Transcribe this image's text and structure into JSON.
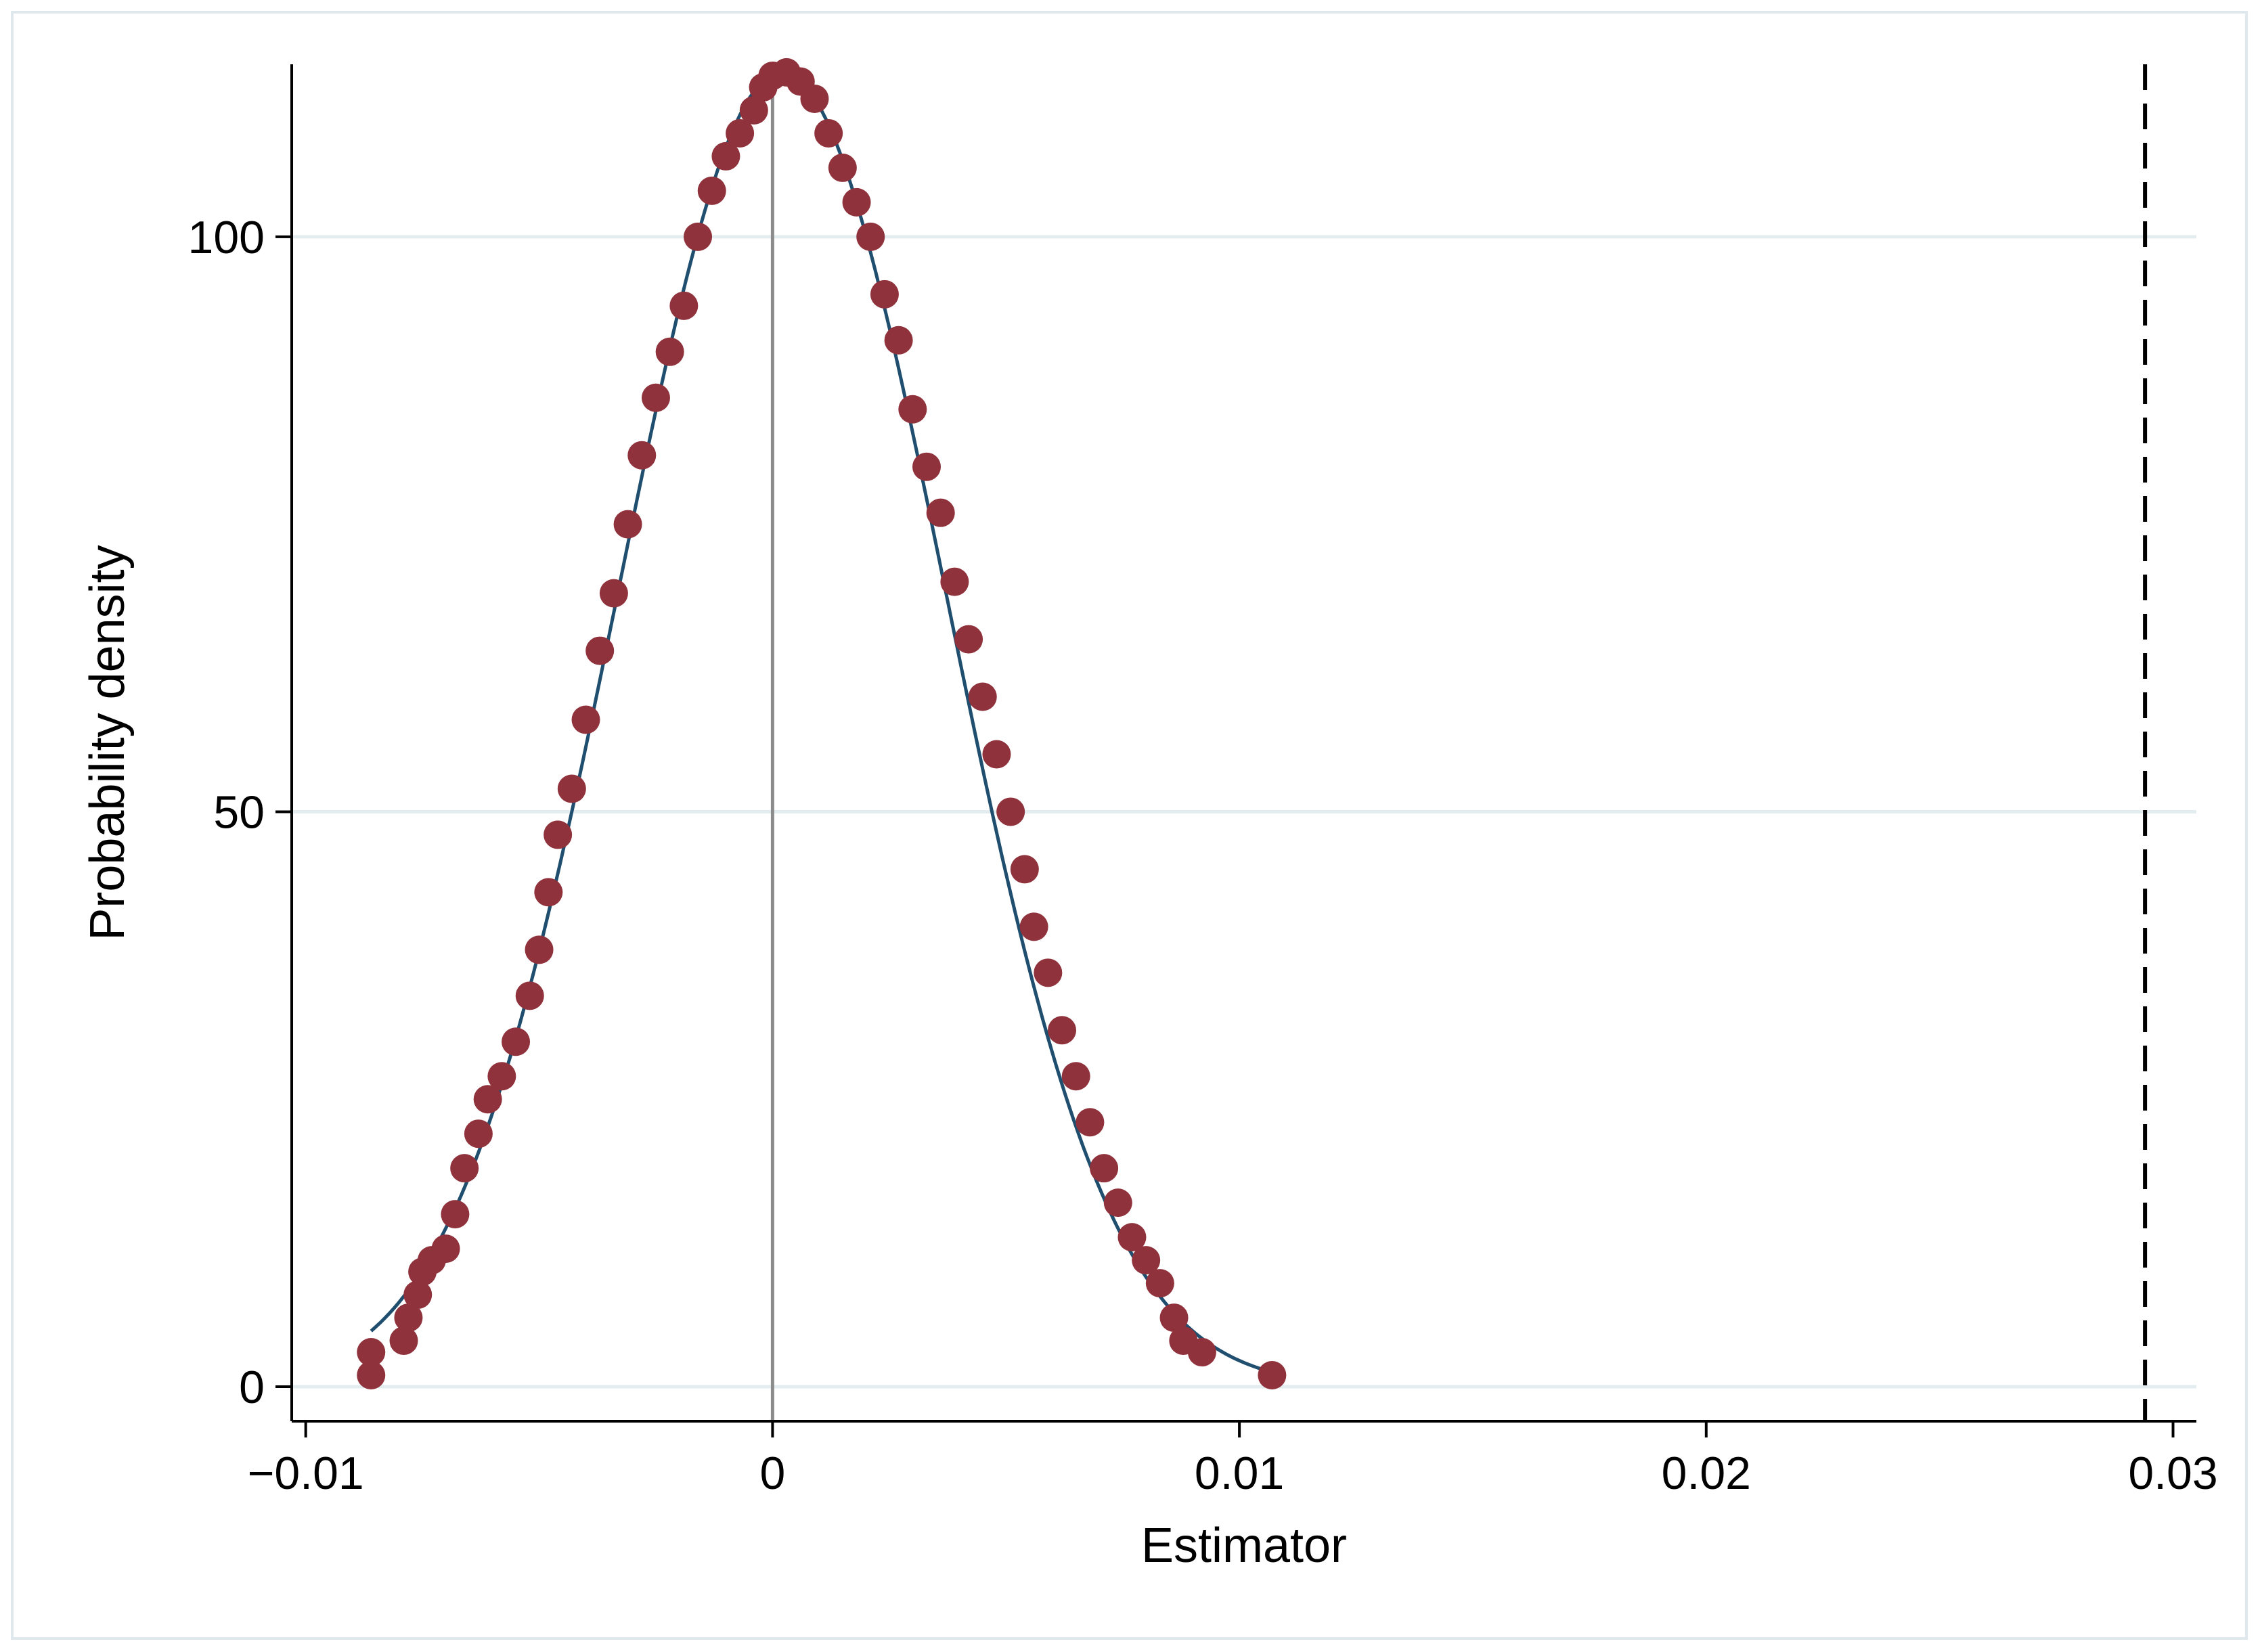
{
  "chart_data": {
    "type": "scatter",
    "title": "",
    "xlabel": "Estimator",
    "ylabel": "Probability density",
    "xlim": [
      -0.0103,
      0.0305
    ],
    "ylim": [
      -3,
      115
    ],
    "x_ticks": [
      -0.01,
      0,
      0.01,
      0.02,
      0.03
    ],
    "x_tick_labels": [
      "−0.01",
      "0",
      "0.01",
      "0.02",
      "0.03"
    ],
    "y_ticks": [
      0,
      50,
      100
    ],
    "y_tick_labels": [
      "0",
      "50",
      "100"
    ],
    "grid": "horizontal",
    "reference_lines": [
      {
        "x": 0,
        "style": "solid",
        "color": "#8c8c8c"
      },
      {
        "x": 0.0294,
        "style": "dashed",
        "color": "#000000"
      }
    ],
    "series": [
      {
        "kind": "points",
        "color": "#8f323c",
        "points": [
          [
            -0.0086,
            1
          ],
          [
            -0.0086,
            3
          ],
          [
            -0.0079,
            4
          ],
          [
            -0.0078,
            6
          ],
          [
            -0.0076,
            8
          ],
          [
            -0.0075,
            10
          ],
          [
            -0.0073,
            11
          ],
          [
            -0.007,
            12
          ],
          [
            -0.0068,
            15
          ],
          [
            -0.0066,
            19
          ],
          [
            -0.0063,
            22
          ],
          [
            -0.0061,
            25
          ],
          [
            -0.0058,
            27
          ],
          [
            -0.0055,
            30
          ],
          [
            -0.0052,
            34
          ],
          [
            -0.005,
            38
          ],
          [
            -0.0048,
            43
          ],
          [
            -0.0046,
            48
          ],
          [
            -0.0043,
            52
          ],
          [
            -0.004,
            58
          ],
          [
            -0.0037,
            64
          ],
          [
            -0.0034,
            69
          ],
          [
            -0.0031,
            75
          ],
          [
            -0.0028,
            81
          ],
          [
            -0.0025,
            86
          ],
          [
            -0.0022,
            90
          ],
          [
            -0.0019,
            94
          ],
          [
            -0.0016,
            100
          ],
          [
            -0.0013,
            104
          ],
          [
            -0.001,
            107
          ],
          [
            -0.0007,
            109
          ],
          [
            -0.0004,
            111
          ],
          [
            -0.0002,
            113
          ],
          [
            0.0,
            114
          ],
          [
            0.0003,
            114.3
          ],
          [
            0.0006,
            113.5
          ],
          [
            0.0009,
            112
          ],
          [
            0.0012,
            109
          ],
          [
            0.0015,
            106
          ],
          [
            0.0018,
            103
          ],
          [
            0.0021,
            100
          ],
          [
            0.0024,
            95
          ],
          [
            0.0027,
            91
          ],
          [
            0.003,
            85
          ],
          [
            0.0033,
            80
          ],
          [
            0.0036,
            76
          ],
          [
            0.0039,
            70
          ],
          [
            0.0042,
            65
          ],
          [
            0.0045,
            60
          ],
          [
            0.0048,
            55
          ],
          [
            0.0051,
            50
          ],
          [
            0.0054,
            45
          ],
          [
            0.0056,
            40
          ],
          [
            0.0059,
            36
          ],
          [
            0.0062,
            31
          ],
          [
            0.0065,
            27
          ],
          [
            0.0068,
            23
          ],
          [
            0.0071,
            19
          ],
          [
            0.0074,
            16
          ],
          [
            0.0077,
            13
          ],
          [
            0.008,
            11
          ],
          [
            0.0083,
            9
          ],
          [
            0.0086,
            6
          ],
          [
            0.0088,
            4
          ],
          [
            0.0092,
            3
          ],
          [
            0.0107,
            1
          ]
        ]
      },
      {
        "kind": "fitted-curve",
        "color": "#1f4e6e",
        "mean": 0.0002,
        "sd": 0.0035,
        "x_range": [
          -0.0086,
          0.0107
        ]
      }
    ]
  }
}
